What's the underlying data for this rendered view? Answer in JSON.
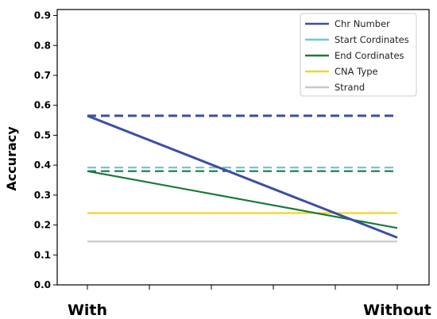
{
  "chart_data": {
    "type": "line",
    "categories": [
      "With",
      "Without"
    ],
    "ylabel": "Accuracy",
    "ylim": [
      0.0,
      0.92
    ],
    "yticks": [
      "0.0",
      "0.1",
      "0.2",
      "0.3",
      "0.4",
      "0.5",
      "0.6",
      "0.7",
      "0.8",
      "0.9"
    ],
    "legend_position": "top-right",
    "series": [
      {
        "name": "Chr Number",
        "color": "#3b4fa3",
        "values": [
          0.565,
          0.158
        ],
        "baseline": 0.565
      },
      {
        "name": "Start Cordinates",
        "color": "#6ec6dc",
        "values": null,
        "baseline": 0.392
      },
      {
        "name": "End Cordinates",
        "color": "#1a7a3a",
        "values": [
          0.38,
          0.19
        ],
        "baseline": 0.38
      },
      {
        "name": "CNA Type",
        "color": "#f5d32a",
        "values": [
          0.24,
          0.24
        ],
        "baseline": null
      },
      {
        "name": "Strand",
        "color": "#c8c8c8",
        "values": [
          0.145,
          0.145
        ],
        "baseline": null
      }
    ]
  }
}
